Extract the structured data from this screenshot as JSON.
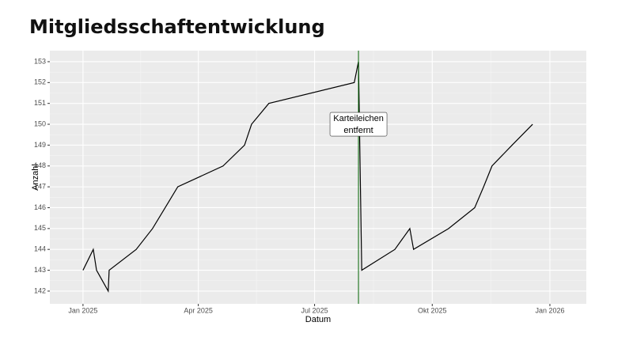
{
  "chart_data": {
    "type": "line",
    "title": "Mitgliedsschaftentwicklung",
    "x_label": "Datum",
    "y_label": "Anzahl",
    "x": [
      2025.0,
      2025.022,
      2025.029,
      2025.054,
      2025.056,
      2025.114,
      2025.149,
      2025.203,
      2025.3,
      2025.346,
      2025.361,
      2025.398,
      2025.581,
      2025.59,
      2025.597,
      2025.668,
      2025.7,
      2025.708,
      2025.783,
      2025.839,
      2025.858,
      2025.876,
      2025.919,
      2025.963
    ],
    "series": [
      {
        "color": "#000000",
        "values": [
          143,
          144,
          143,
          142,
          143,
          144,
          145,
          147,
          148,
          149,
          150,
          151,
          152,
          153,
          143,
          144,
          145,
          144,
          145,
          146,
          147,
          148,
          149,
          150
        ]
      }
    ],
    "xlim": [
      2024.929,
      2026.078
    ],
    "ylim": [
      141.39,
      153.53
    ],
    "xticks": [
      {
        "value": 2025.0,
        "label": "Jan 2025"
      },
      {
        "value": 2025.247,
        "label": "Apr 2025"
      },
      {
        "value": 2025.496,
        "label": "Jul 2025"
      },
      {
        "value": 2025.748,
        "label": "Okt 2025"
      },
      {
        "value": 2026.0,
        "label": "Jan 2026"
      }
    ],
    "yticks": [
      142,
      143,
      144,
      145,
      146,
      147,
      148,
      149,
      150,
      151,
      152,
      153
    ],
    "grid": true,
    "vline": {
      "x": 2025.59,
      "color": "#006400"
    },
    "annotation": {
      "lines": [
        "Karteileichen",
        "entfernt"
      ],
      "x": 2025.59,
      "y": 150
    }
  }
}
